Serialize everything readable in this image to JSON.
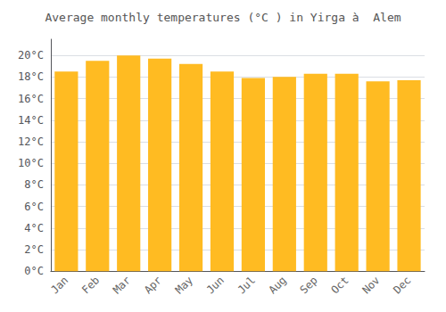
{
  "chart_data": {
    "type": "bar",
    "title": "Average monthly temperatures (°C ) in Yirga à  Alem",
    "categories": [
      "Jan",
      "Feb",
      "Mar",
      "Apr",
      "May",
      "Jun",
      "Jul",
      "Aug",
      "Sep",
      "Oct",
      "Nov",
      "Dec"
    ],
    "values": [
      18.5,
      19.5,
      20.0,
      19.7,
      19.2,
      18.5,
      17.9,
      18.0,
      18.3,
      18.3,
      17.6,
      17.7
    ],
    "color": "#FFBB22",
    "ylim": [
      0,
      21.5
    ],
    "yticks": [
      {
        "value": 0,
        "label": "0°C"
      },
      {
        "value": 2,
        "label": "2°C"
      },
      {
        "value": 4,
        "label": "4°C"
      },
      {
        "value": 6,
        "label": "6°C"
      },
      {
        "value": 8,
        "label": "8°C"
      },
      {
        "value": 10,
        "label": "10°C"
      },
      {
        "value": 12,
        "label": "12°C"
      },
      {
        "value": 14,
        "label": "14°C"
      },
      {
        "value": 16,
        "label": "16°C"
      },
      {
        "value": 18,
        "label": "18°C"
      },
      {
        "value": 20,
        "label": "20°C"
      }
    ],
    "grid": true
  }
}
